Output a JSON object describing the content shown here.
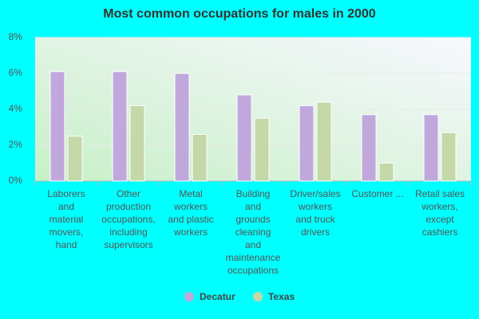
{
  "chart_data": {
    "type": "bar",
    "title": "Most common occupations for males in 2000",
    "categories": [
      "Laborers\nand\nmaterial\nmovers,\nhand",
      "Other\nproduction\noccupations,\nincluding\nsupervisors",
      "Metal\nworkers\nand plastic\nworkers",
      "Building\nand\ngrounds\ncleaning\nand\nmaintenance\noccupations",
      "Driver/sales\nworkers\nand truck\ndrivers",
      "Customer ...",
      "Retail sales\nworkers,\nexcept\ncashiers"
    ],
    "series": [
      {
        "name": "Decatur",
        "color": "#c0a8dc",
        "values": [
          6.1,
          6.1,
          6.0,
          4.8,
          4.2,
          3.7,
          3.7
        ]
      },
      {
        "name": "Texas",
        "color": "#c4d8a8",
        "values": [
          2.5,
          4.2,
          2.6,
          3.5,
          4.4,
          1.0,
          2.7
        ]
      }
    ],
    "ylim": [
      0,
      8
    ],
    "yticks": [
      {
        "value": 0,
        "label": "0%"
      },
      {
        "value": 2,
        "label": "2%"
      },
      {
        "value": 4,
        "label": "4%"
      },
      {
        "value": 6,
        "label": "6%"
      },
      {
        "value": 8,
        "label": "8%"
      }
    ],
    "grid": true
  }
}
